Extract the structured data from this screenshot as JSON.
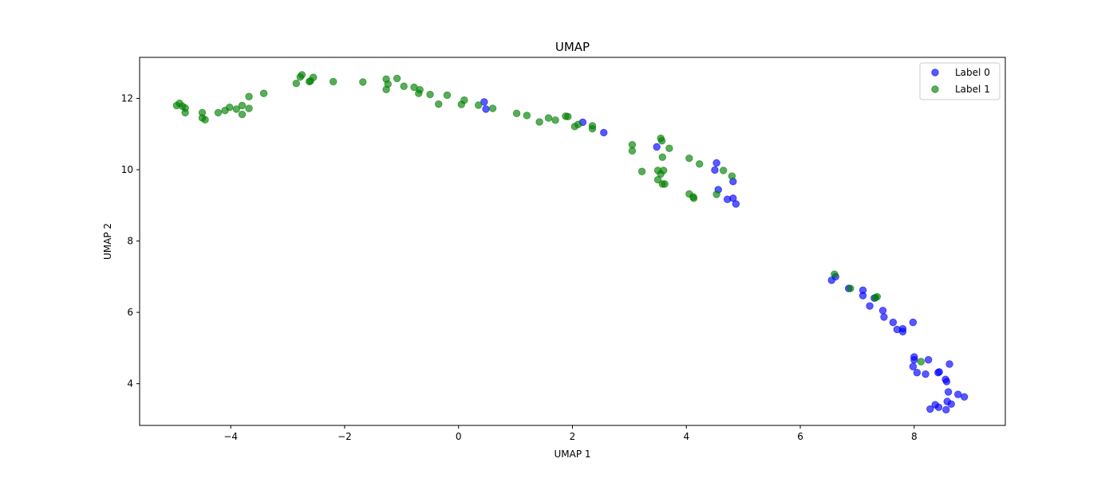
{
  "chart_data": {
    "type": "scatter",
    "title": "UMAP",
    "xlabel": "UMAP 1",
    "ylabel": "UMAP 2",
    "xlim": [
      -5.6,
      9.6
    ],
    "ylim": [
      2.83,
      13.15
    ],
    "xticks": [
      -4,
      -2,
      0,
      2,
      4,
      6,
      8
    ],
    "yticks": [
      4,
      6,
      8,
      10,
      12
    ],
    "grid": false,
    "legend_position": "top-right",
    "series": [
      {
        "name": "Label 0",
        "color": "#0000ff",
        "alpha": 0.65,
        "points": [
          [
            0.45,
            11.9
          ],
          [
            0.48,
            11.7
          ],
          [
            2.18,
            11.33
          ],
          [
            2.55,
            11.04
          ],
          [
            3.48,
            10.64
          ],
          [
            4.53,
            10.19
          ],
          [
            4.5,
            9.99
          ],
          [
            4.82,
            9.67
          ],
          [
            4.56,
            9.44
          ],
          [
            4.72,
            9.17
          ],
          [
            4.82,
            9.2
          ],
          [
            4.87,
            9.04
          ],
          [
            6.55,
            6.9
          ],
          [
            6.62,
            7.0
          ],
          [
            6.85,
            6.67
          ],
          [
            7.1,
            6.62
          ],
          [
            7.1,
            6.47
          ],
          [
            7.22,
            6.18
          ],
          [
            7.3,
            6.4
          ],
          [
            7.45,
            6.05
          ],
          [
            7.47,
            5.87
          ],
          [
            7.63,
            5.72
          ],
          [
            7.7,
            5.52
          ],
          [
            7.8,
            5.54
          ],
          [
            7.8,
            5.46
          ],
          [
            7.98,
            5.72
          ],
          [
            8.0,
            4.75
          ],
          [
            8.0,
            4.67
          ],
          [
            7.98,
            4.48
          ],
          [
            8.05,
            4.31
          ],
          [
            8.2,
            4.27
          ],
          [
            8.25,
            4.67
          ],
          [
            8.42,
            4.31
          ],
          [
            8.44,
            4.33
          ],
          [
            8.55,
            4.12
          ],
          [
            8.57,
            4.06
          ],
          [
            8.62,
            4.55
          ],
          [
            8.6,
            3.77
          ],
          [
            8.77,
            3.7
          ],
          [
            8.88,
            3.63
          ],
          [
            8.58,
            3.5
          ],
          [
            8.65,
            3.43
          ],
          [
            8.37,
            3.41
          ],
          [
            8.43,
            3.34
          ],
          [
            8.28,
            3.29
          ],
          [
            8.56,
            3.27
          ]
        ]
      },
      {
        "name": "Label 1",
        "color": "#008000",
        "alpha": 0.65,
        "points": [
          [
            -4.95,
            11.8
          ],
          [
            -4.9,
            11.86
          ],
          [
            -4.85,
            11.78
          ],
          [
            -4.8,
            11.73
          ],
          [
            -4.8,
            11.6
          ],
          [
            -4.5,
            11.6
          ],
          [
            -4.5,
            11.45
          ],
          [
            -4.45,
            11.4
          ],
          [
            -4.22,
            11.6
          ],
          [
            -4.1,
            11.66
          ],
          [
            -4.02,
            11.75
          ],
          [
            -3.9,
            11.7
          ],
          [
            -3.8,
            11.55
          ],
          [
            -3.8,
            11.8
          ],
          [
            -3.68,
            11.72
          ],
          [
            -3.68,
            12.05
          ],
          [
            -3.42,
            12.14
          ],
          [
            -2.85,
            12.42
          ],
          [
            -2.78,
            12.6
          ],
          [
            -2.75,
            12.66
          ],
          [
            -2.62,
            12.47
          ],
          [
            -2.6,
            12.49
          ],
          [
            -2.55,
            12.59
          ],
          [
            -2.2,
            12.47
          ],
          [
            -1.68,
            12.46
          ],
          [
            -1.27,
            12.54
          ],
          [
            -1.24,
            12.4
          ],
          [
            -1.27,
            12.25
          ],
          [
            -1.08,
            12.56
          ],
          [
            -0.96,
            12.34
          ],
          [
            -0.78,
            12.31
          ],
          [
            -0.7,
            12.14
          ],
          [
            -0.68,
            12.24
          ],
          [
            -0.5,
            12.11
          ],
          [
            -0.35,
            11.84
          ],
          [
            -0.2,
            12.09
          ],
          [
            0.05,
            11.83
          ],
          [
            0.1,
            11.95
          ],
          [
            0.35,
            11.81
          ],
          [
            0.6,
            11.72
          ],
          [
            1.02,
            11.58
          ],
          [
            1.2,
            11.52
          ],
          [
            1.42,
            11.34
          ],
          [
            1.58,
            11.45
          ],
          [
            1.7,
            11.39
          ],
          [
            1.88,
            11.5
          ],
          [
            1.92,
            11.49
          ],
          [
            2.04,
            11.21
          ],
          [
            2.1,
            11.27
          ],
          [
            2.35,
            11.23
          ],
          [
            2.35,
            11.15
          ],
          [
            3.05,
            10.7
          ],
          [
            3.05,
            10.53
          ],
          [
            3.22,
            9.95
          ],
          [
            3.5,
            9.98
          ],
          [
            3.5,
            9.72
          ],
          [
            3.55,
            9.88
          ],
          [
            3.55,
            10.88
          ],
          [
            3.57,
            10.81
          ],
          [
            3.58,
            10.35
          ],
          [
            3.6,
            9.98
          ],
          [
            3.58,
            9.6
          ],
          [
            3.62,
            9.6
          ],
          [
            3.7,
            10.6
          ],
          [
            4.05,
            10.32
          ],
          [
            4.05,
            9.32
          ],
          [
            4.12,
            9.24
          ],
          [
            4.13,
            9.2
          ],
          [
            4.23,
            10.16
          ],
          [
            4.53,
            9.31
          ],
          [
            4.65,
            9.98
          ],
          [
            4.8,
            9.82
          ],
          [
            6.6,
            7.07
          ],
          [
            6.88,
            6.67
          ],
          [
            7.32,
            6.41
          ],
          [
            7.35,
            6.44
          ],
          [
            8.12,
            4.62
          ]
        ]
      }
    ]
  }
}
